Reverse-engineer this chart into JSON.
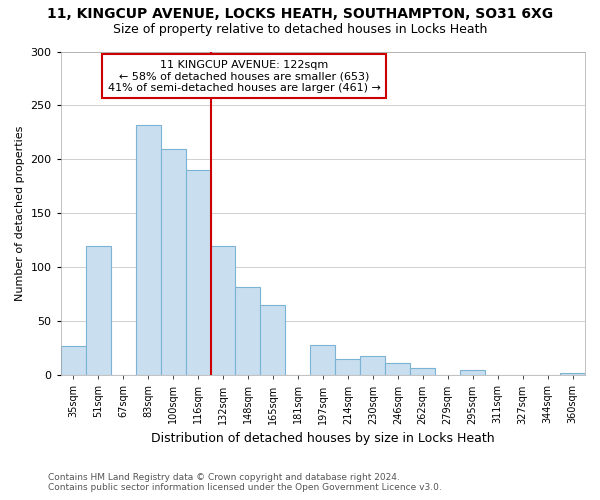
{
  "title": "11, KINGCUP AVENUE, LOCKS HEATH, SOUTHAMPTON, SO31 6XG",
  "subtitle": "Size of property relative to detached houses in Locks Heath",
  "xlabel": "Distribution of detached houses by size in Locks Heath",
  "ylabel": "Number of detached properties",
  "footnote1": "Contains HM Land Registry data © Crown copyright and database right 2024.",
  "footnote2": "Contains public sector information licensed under the Open Government Licence v3.0.",
  "bin_labels": [
    "35sqm",
    "51sqm",
    "67sqm",
    "83sqm",
    "100sqm",
    "116sqm",
    "132sqm",
    "148sqm",
    "165sqm",
    "181sqm",
    "197sqm",
    "214sqm",
    "230sqm",
    "246sqm",
    "262sqm",
    "279sqm",
    "295sqm",
    "311sqm",
    "327sqm",
    "344sqm",
    "360sqm"
  ],
  "bar_values": [
    27,
    120,
    0,
    232,
    210,
    190,
    120,
    82,
    65,
    0,
    28,
    15,
    18,
    11,
    7,
    0,
    5,
    0,
    0,
    0,
    2
  ],
  "bar_color": "#c9dff0",
  "bar_edge_color": "#7ab3d4",
  "vline_x_index": 5.5,
  "annotation_title": "11 KINGCUP AVENUE: 122sqm",
  "annotation_line1": "← 58% of detached houses are smaller (653)",
  "annotation_line2": "41% of semi-detached houses are larger (461) →",
  "vline_color": "#cc0000",
  "annotation_box_color": "#cc0000",
  "ylim": [
    0,
    300
  ],
  "yticks": [
    0,
    50,
    100,
    150,
    200,
    250,
    300
  ],
  "background_color": "#ffffff",
  "grid_color": "#d0d0d0"
}
